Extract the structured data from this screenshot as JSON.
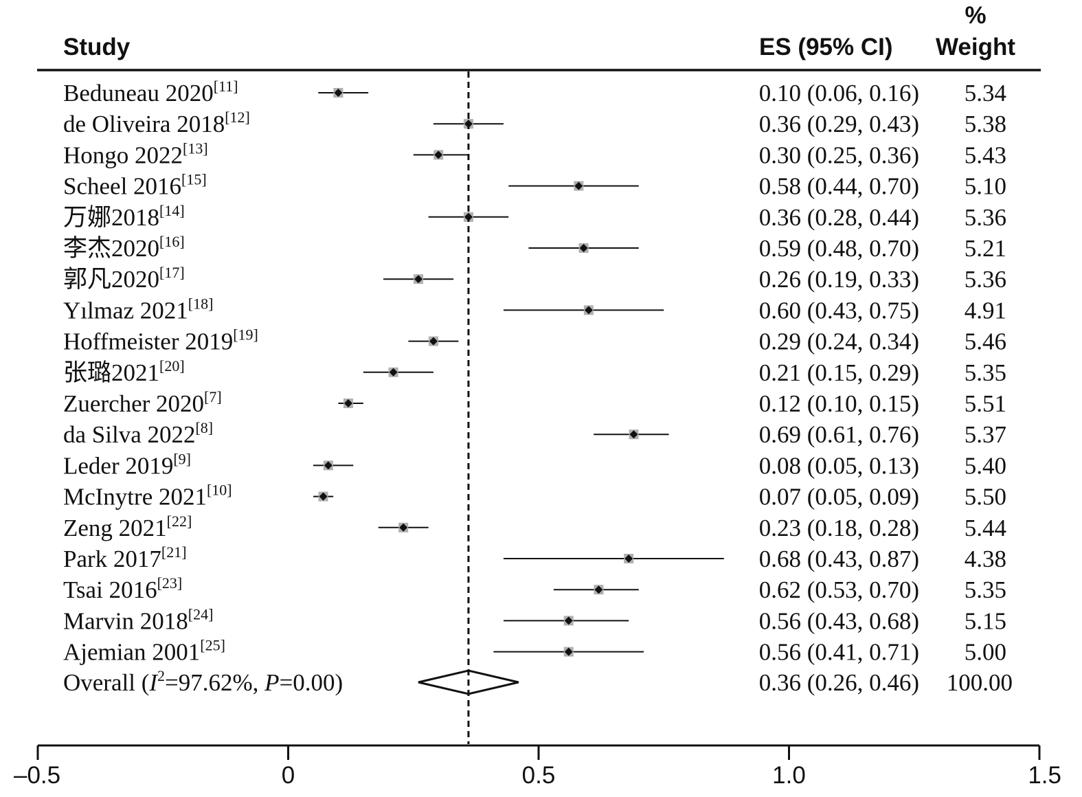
{
  "headers": {
    "study": "Study",
    "es": "ES (95% CI)",
    "weight_line1": "%",
    "weight_line2": "Weight"
  },
  "overall_label": {
    "prefix": "Overall  (",
    "i_letter": "I",
    "i_sup": "2",
    "mid": "=97.62%, ",
    "p_letter": "P",
    "suffix": "=0.00)"
  },
  "chart_data": {
    "type": "forest",
    "x_axis": {
      "range": [
        -0.5,
        1.5
      ],
      "ticks": [
        -0.5,
        0,
        0.5,
        1.0,
        1.5
      ],
      "tick_labels": [
        "–0.5",
        "0",
        "0.5",
        "1.0",
        "1.5"
      ]
    },
    "reference_line": 0.36,
    "studies": [
      {
        "name": "Beduneau 2020",
        "ref": "[11]",
        "es": 0.1,
        "lo": 0.06,
        "hi": 0.16,
        "ci_text": "0.10 (0.06, 0.16)",
        "weight": "5.34"
      },
      {
        "name": "de Oliveira 2018",
        "ref": "[12]",
        "es": 0.36,
        "lo": 0.29,
        "hi": 0.43,
        "ci_text": "0.36 (0.29, 0.43)",
        "weight": "5.38"
      },
      {
        "name": "Hongo 2022",
        "ref": "[13]",
        "es": 0.3,
        "lo": 0.25,
        "hi": 0.36,
        "ci_text": "0.30 (0.25, 0.36)",
        "weight": "5.43"
      },
      {
        "name": "Scheel 2016",
        "ref": "[15]",
        "es": 0.58,
        "lo": 0.44,
        "hi": 0.7,
        "ci_text": "0.58 (0.44, 0.70)",
        "weight": "5.10"
      },
      {
        "name": "万娜2018",
        "ref": "[14]",
        "es": 0.36,
        "lo": 0.28,
        "hi": 0.44,
        "ci_text": "0.36 (0.28, 0.44)",
        "weight": "5.36"
      },
      {
        "name": "李杰2020",
        "ref": "[16]",
        "es": 0.59,
        "lo": 0.48,
        "hi": 0.7,
        "ci_text": "0.59 (0.48, 0.70)",
        "weight": "5.21"
      },
      {
        "name": "郭凡2020",
        "ref": "[17]",
        "es": 0.26,
        "lo": 0.19,
        "hi": 0.33,
        "ci_text": "0.26 (0.19, 0.33)",
        "weight": "5.36"
      },
      {
        "name": "Yılmaz 2021",
        "ref": "[18]",
        "es": 0.6,
        "lo": 0.43,
        "hi": 0.75,
        "ci_text": "0.60 (0.43, 0.75)",
        "weight": "4.91"
      },
      {
        "name": "Hoffmeister 2019",
        "ref": "[19]",
        "es": 0.29,
        "lo": 0.24,
        "hi": 0.34,
        "ci_text": "0.29 (0.24, 0.34)",
        "weight": "5.46"
      },
      {
        "name": "张璐2021",
        "ref": "[20]",
        "es": 0.21,
        "lo": 0.15,
        "hi": 0.29,
        "ci_text": "0.21 (0.15, 0.29)",
        "weight": "5.35"
      },
      {
        "name": "Zuercher 2020",
        "ref": "[7]",
        "es": 0.12,
        "lo": 0.1,
        "hi": 0.15,
        "ci_text": "0.12 (0.10, 0.15)",
        "weight": "5.51"
      },
      {
        "name": "da Silva 2022",
        "ref": "[8]",
        "es": 0.69,
        "lo": 0.61,
        "hi": 0.76,
        "ci_text": "0.69 (0.61, 0.76)",
        "weight": "5.37"
      },
      {
        "name": "Leder 2019",
        "ref": "[9]",
        "es": 0.08,
        "lo": 0.05,
        "hi": 0.13,
        "ci_text": "0.08 (0.05, 0.13)",
        "weight": "5.40"
      },
      {
        "name": "McInytre 2021",
        "ref": "[10]",
        "es": 0.07,
        "lo": 0.05,
        "hi": 0.09,
        "ci_text": "0.07 (0.05, 0.09)",
        "weight": "5.50"
      },
      {
        "name": "Zeng 2021",
        "ref": "[22]",
        "es": 0.23,
        "lo": 0.18,
        "hi": 0.28,
        "ci_text": "0.23 (0.18, 0.28)",
        "weight": "5.44"
      },
      {
        "name": "Park 2017",
        "ref": "[21]",
        "es": 0.68,
        "lo": 0.43,
        "hi": 0.87,
        "ci_text": "0.68 (0.43, 0.87)",
        "weight": "4.38"
      },
      {
        "name": "Tsai 2016",
        "ref": "[23]",
        "es": 0.62,
        "lo": 0.53,
        "hi": 0.7,
        "ci_text": "0.62 (0.53, 0.70)",
        "weight": "5.35"
      },
      {
        "name": "Marvin 2018",
        "ref": "[24]",
        "es": 0.56,
        "lo": 0.43,
        "hi": 0.68,
        "ci_text": "0.56 (0.43, 0.68)",
        "weight": "5.15"
      },
      {
        "name": "Ajemian 2001",
        "ref": "[25]",
        "es": 0.56,
        "lo": 0.41,
        "hi": 0.71,
        "ci_text": "0.56 (0.41, 0.71)",
        "weight": "5.00"
      }
    ],
    "overall": {
      "es": 0.36,
      "lo": 0.26,
      "hi": 0.46,
      "ci_text": "0.36 (0.26, 0.46)",
      "weight": "100.00"
    },
    "colors": {
      "ink": "#111111",
      "marker_box": "#b0b0b0"
    }
  }
}
